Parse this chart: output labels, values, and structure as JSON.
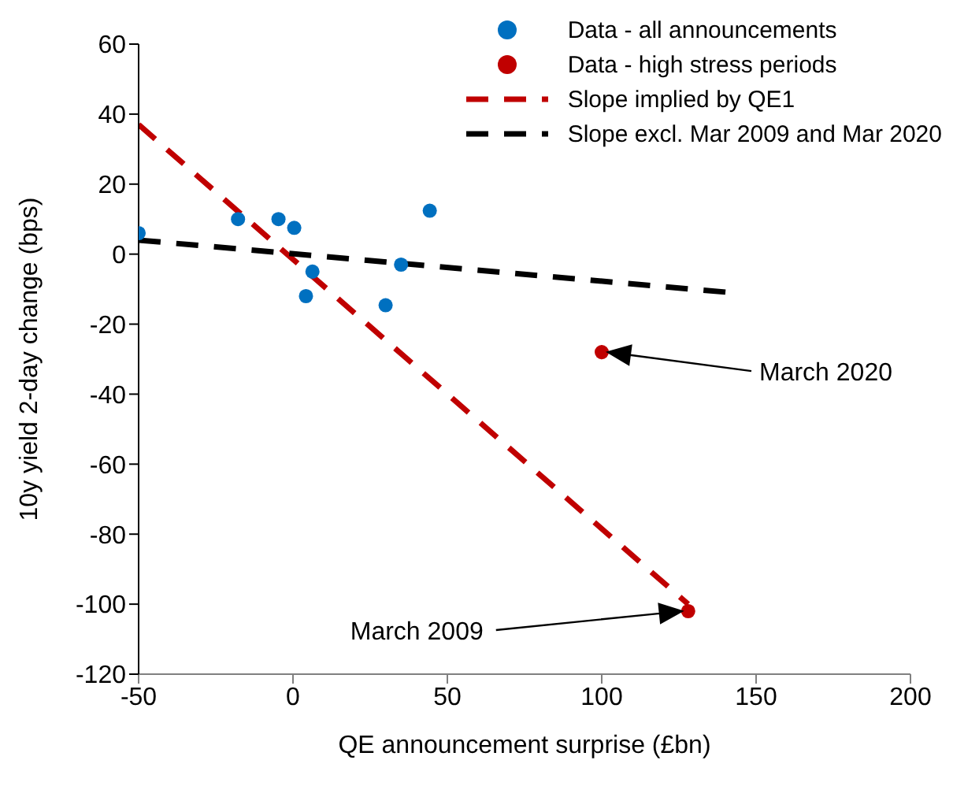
{
  "chart_data": {
    "type": "scatter",
    "xlabel": "QE announcement surprise  (£bn)",
    "ylabel": "10y yield 2-day change (bps)",
    "xlim": [
      -50,
      200
    ],
    "xticks": [
      -50,
      0,
      50,
      100,
      150,
      200
    ],
    "ylim": [
      -120,
      60
    ],
    "yticks": [
      -120,
      -100,
      -80,
      -60,
      -40,
      -20,
      0,
      20,
      40,
      60
    ],
    "grid": false,
    "legend": "top right",
    "marker": "circle",
    "series": [
      {
        "name": "Data - all announcements",
        "type": "scatter",
        "color": "#0070c0",
        "x": [
          -50,
          -17.8,
          -4.7,
          0.4,
          6.3,
          4.2,
          35,
          30,
          44.3
        ],
        "values": [
          6,
          10,
          10,
          7.5,
          -5,
          -12,
          -3,
          -14.6,
          12.4
        ]
      },
      {
        "name": "Data - high stress periods",
        "type": "scatter",
        "color": "#c00000",
        "x": [
          100,
          128
        ],
        "values": [
          -28,
          -102
        ]
      },
      {
        "name": "Slope implied by QE1",
        "type": "line",
        "line_style": "dashed",
        "marker": "none",
        "color": "#c00000",
        "x": [
          -50,
          128
        ],
        "values": [
          37,
          -100
        ]
      },
      {
        "name": "Slope excl. Mar 2009 and Mar 2020",
        "type": "line",
        "line_style": "dashed",
        "marker": "none",
        "color": "#000000",
        "x": [
          -50,
          142
        ],
        "values": [
          4,
          -11
        ]
      }
    ],
    "annotations": [
      "March 2020",
      "March 2009"
    ]
  }
}
